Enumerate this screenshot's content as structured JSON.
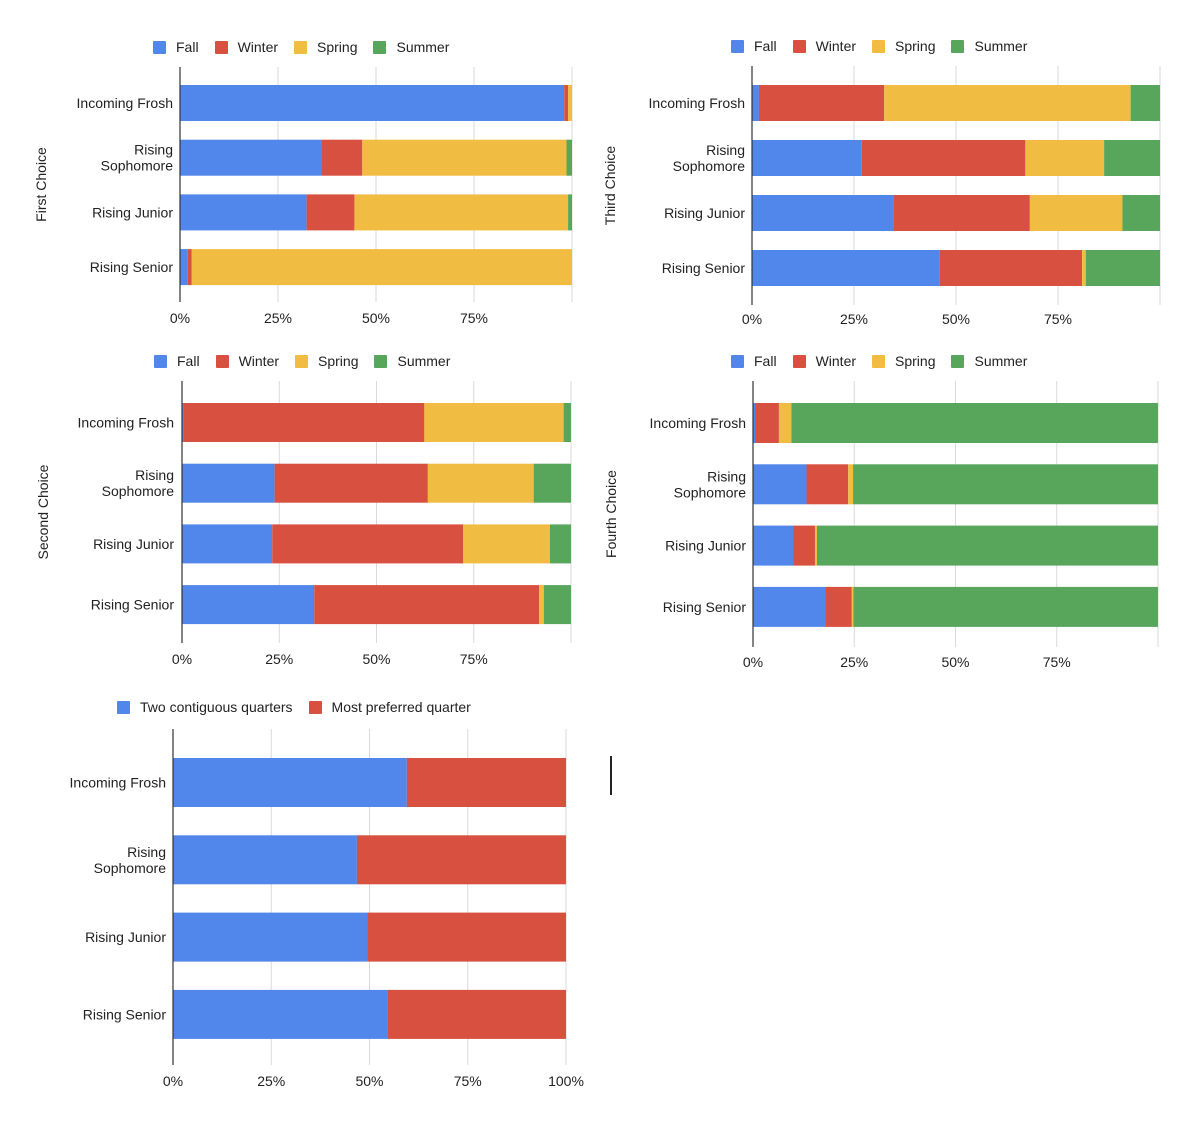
{
  "colors": {
    "Fall": "#5186EA",
    "Winter": "#D85040",
    "Spring": "#F0BC42",
    "Summer": "#58A65C",
    "Two contiguous quarters": "#5186EA",
    "Most preferred quarter": "#D85040",
    "gridline": "#DADADA",
    "axis": "#333333",
    "text": "#222222"
  },
  "chart_data": [
    {
      "id": "first-choice",
      "type": "bar",
      "orientation": "horizontal",
      "stacked": "percent",
      "ylabel": "First Choice",
      "xlabel": "",
      "categories": [
        "Incoming Frosh",
        "Rising Sophomore",
        "Rising Junior",
        "Rising Senior"
      ],
      "xticks": [
        "0%",
        "25%",
        "50%",
        "75%"
      ],
      "xlim": [
        0,
        100
      ],
      "grid": true,
      "legend": "top",
      "series": [
        {
          "name": "Fall",
          "values": [
            98.0,
            36.0,
            32.3,
            2.0
          ]
        },
        {
          "name": "Winter",
          "values": [
            1.0,
            10.5,
            12.2,
            1.0
          ]
        },
        {
          "name": "Spring",
          "values": [
            1.0,
            52.1,
            54.5,
            97.0
          ]
        },
        {
          "name": "Summer",
          "values": [
            0.0,
            1.4,
            1.0,
            0.0
          ]
        }
      ]
    },
    {
      "id": "third-choice",
      "type": "bar",
      "orientation": "horizontal",
      "stacked": "percent",
      "ylabel": "Third Choice",
      "xlabel": "",
      "categories": [
        "Incoming Frosh",
        "Rising Sophomore",
        "Rising Junior",
        "Rising Senior"
      ],
      "xticks": [
        "0%",
        "25%",
        "50%",
        "75%"
      ],
      "xlim": [
        0,
        100
      ],
      "grid": true,
      "legend": "top",
      "series": [
        {
          "name": "Fall",
          "values": [
            1.7,
            26.9,
            34.6,
            46.0
          ]
        },
        {
          "name": "Winter",
          "values": [
            30.7,
            40.1,
            33.5,
            34.9
          ]
        },
        {
          "name": "Spring",
          "values": [
            60.4,
            19.3,
            22.7,
            0.9
          ]
        },
        {
          "name": "Summer",
          "values": [
            7.2,
            13.7,
            9.2,
            18.2
          ]
        }
      ]
    },
    {
      "id": "second-choice",
      "type": "bar",
      "orientation": "horizontal",
      "stacked": "percent",
      "ylabel": "Second Choice",
      "xlabel": "",
      "categories": [
        "Incoming Frosh",
        "Rising Sophomore",
        "Rising Junior",
        "Rising Senior"
      ],
      "xticks": [
        "0%",
        "25%",
        "50%",
        "75%"
      ],
      "xlim": [
        0,
        100
      ],
      "grid": true,
      "legend": "top",
      "series": [
        {
          "name": "Fall",
          "values": [
            0.4,
            23.8,
            23.2,
            34.0
          ]
        },
        {
          "name": "Winter",
          "values": [
            61.9,
            39.4,
            49.1,
            57.8
          ]
        },
        {
          "name": "Spring",
          "values": [
            35.8,
            27.2,
            22.3,
            1.2
          ]
        },
        {
          "name": "Summer",
          "values": [
            1.9,
            9.6,
            5.4,
            7.0
          ]
        }
      ]
    },
    {
      "id": "fourth-choice",
      "type": "bar",
      "orientation": "horizontal",
      "stacked": "percent",
      "ylabel": "Fourth Choice",
      "xlabel": "",
      "categories": [
        "Incoming Frosh",
        "Rising Sophomore",
        "Rising Junior",
        "Rising Senior"
      ],
      "xticks": [
        "0%",
        "25%",
        "50%",
        "75%"
      ],
      "xlim": [
        0,
        100
      ],
      "grid": true,
      "legend": "top",
      "series": [
        {
          "name": "Fall",
          "values": [
            0.5,
            13.2,
            10.0,
            17.8
          ]
        },
        {
          "name": "Winter",
          "values": [
            5.9,
            10.3,
            5.3,
            6.6
          ]
        },
        {
          "name": "Spring",
          "values": [
            3.1,
            1.2,
            0.5,
            0.4
          ]
        },
        {
          "name": "Summer",
          "values": [
            90.5,
            75.3,
            84.2,
            75.2
          ]
        }
      ]
    },
    {
      "id": "contiguous-vs-preferred",
      "type": "bar",
      "orientation": "horizontal",
      "stacked": "percent",
      "ylabel": "",
      "xlabel": "",
      "categories": [
        "Incoming Frosh",
        "Rising Sophomore",
        "Rising Junior",
        "Rising Senior"
      ],
      "xticks": [
        "0%",
        "25%",
        "50%",
        "75%",
        "100%"
      ],
      "xlim": [
        0,
        100
      ],
      "grid": true,
      "legend": "top",
      "series": [
        {
          "name": "Two contiguous quarters",
          "values": [
            59.5,
            46.8,
            49.5,
            54.6
          ]
        },
        {
          "name": "Most preferred quarter",
          "values": [
            40.5,
            53.2,
            50.5,
            45.4
          ]
        }
      ]
    }
  ]
}
